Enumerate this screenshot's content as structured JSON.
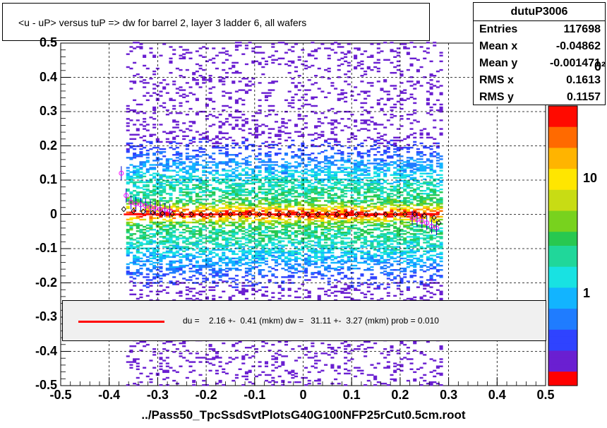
{
  "title": "<u - uP>       versus  tuP =>  dw for barrel 2, layer 3 ladder 6, all wafers",
  "stats": {
    "name": "dutuP3006",
    "rows": [
      {
        "k": "Entries",
        "v": "117698"
      },
      {
        "k": "Mean x",
        "v": "-0.04862"
      },
      {
        "k": "Mean y",
        "v": "-0.001471"
      },
      {
        "k": "RMS x",
        "v": "0.1613"
      },
      {
        "k": "RMS y",
        "v": "0.1157"
      }
    ]
  },
  "fit_text": "du =    2.16 +-  0.41 (mkm) dw =   31.11 +-  3.27 (mkm) prob = 0.010",
  "xlabel": "../Pass50_TpcSsdSvtPlotsG40G100NFP25rCut0.5cm.root",
  "colorbar_labels": [
    "10",
    "1"
  ],
  "colorbar_cut_label": "0²",
  "chart_data": {
    "type": "heatmap",
    "xlim": [
      -0.5,
      0.5
    ],
    "ylim": [
      -0.5,
      0.5
    ],
    "x_ticks": [
      "-0.5",
      "-0.4",
      "-0.3",
      "-0.2",
      "-0.1",
      "0",
      "0.1",
      "0.2",
      "0.3",
      "0.4",
      "0.5"
    ],
    "y_ticks": [
      "-0.5",
      "-0.4",
      "-0.3",
      "-0.2",
      "-0.1",
      "0",
      "0.1",
      "0.2",
      "0.3",
      "0.4",
      "0.5"
    ],
    "grid": true,
    "z_scale": "log",
    "fit_line": {
      "x": [
        -0.37,
        0.28
      ],
      "y": [
        0.0,
        0.0
      ],
      "color": "#ff0000"
    },
    "profile_black": {
      "x": [
        -0.37,
        -0.35,
        -0.33,
        -0.31,
        -0.29,
        -0.27,
        -0.25,
        -0.23,
        -0.21,
        -0.19,
        -0.17,
        -0.15,
        -0.13,
        -0.11,
        -0.09,
        -0.07,
        -0.05,
        -0.03,
        -0.01,
        0.01,
        0.03,
        0.05,
        0.07,
        0.09,
        0.11,
        0.13,
        0.15,
        0.17,
        0.19,
        0.21,
        0.23,
        0.25,
        0.27,
        0.28
      ],
      "y": [
        0.015,
        0.01,
        0.008,
        0.005,
        0.003,
        0.001,
        0.0,
        0.0,
        0.0,
        -0.001,
        0.0,
        0.0,
        0.0,
        0.001,
        0.0,
        0.0,
        0.0,
        0.001,
        0.0,
        0.0,
        0.0,
        0.001,
        0.0,
        0.0,
        0.0,
        0.001,
        0.0,
        0.0,
        0.0,
        0.0,
        0.0,
        -0.003,
        -0.01,
        -0.025
      ]
    },
    "profile_magenta": {
      "x": [
        -0.375,
        -0.365,
        -0.355,
        -0.345,
        -0.335,
        -0.325,
        -0.315,
        -0.305,
        -0.295,
        -0.285,
        -0.275,
        0.225,
        0.235,
        0.245,
        0.255,
        0.265,
        0.275
      ],
      "y": [
        0.12,
        0.055,
        0.035,
        0.03,
        0.028,
        0.025,
        0.02,
        0.018,
        0.015,
        0.013,
        0.01,
        -0.01,
        -0.015,
        -0.02,
        -0.025,
        -0.035,
        -0.04
      ]
    }
  }
}
